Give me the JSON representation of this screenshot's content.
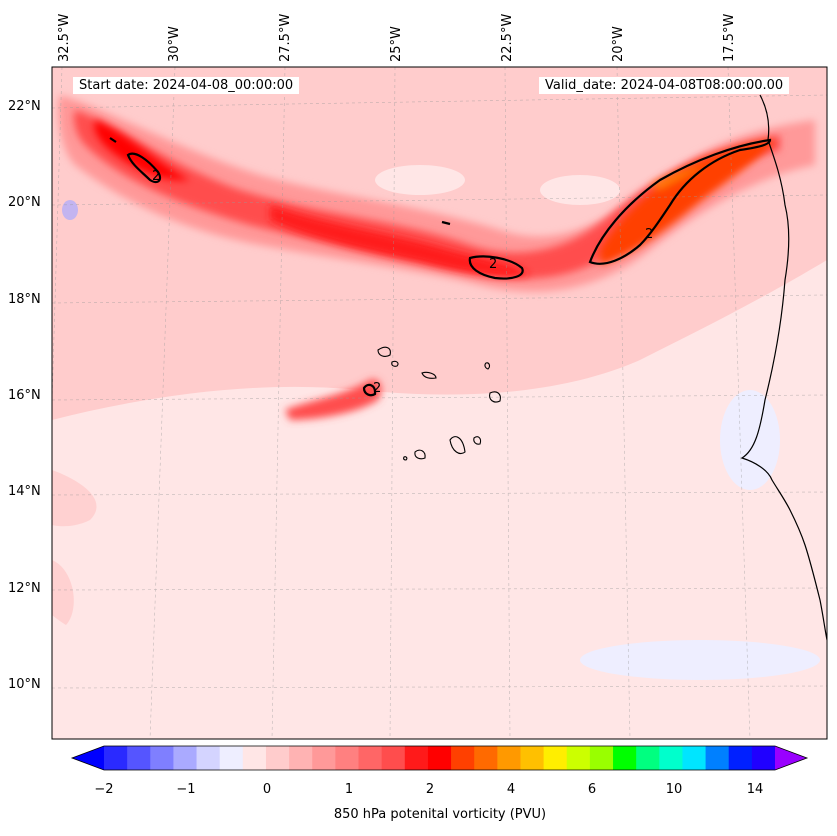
{
  "map": {
    "start_label": "Start date: 2024-04-08_00:00:00",
    "valid_label": "Valid_date: 2024-04-08T08:00:00.00",
    "lon_ticks": [
      "32.5°W",
      "30°W",
      "27.5°W",
      "25°W",
      "22.5°W",
      "20°W",
      "17.5°W"
    ],
    "lat_ticks": [
      "22°N",
      "20°N",
      "18°N",
      "16°N",
      "14°N",
      "12°N",
      "10°N"
    ],
    "contour_label": "2",
    "colorbar": {
      "label": "850 hPa potenital vorticity (PVU)",
      "tick_labels": [
        "−2",
        "−1",
        "0",
        "1",
        "2",
        "4",
        "6",
        "10",
        "14"
      ],
      "colors": [
        "#0000ff",
        "#2a2aff",
        "#5555ff",
        "#7f7fff",
        "#aaaaff",
        "#d4d4ff",
        "#eeeeff",
        "#ffe6e6",
        "#ffcccc",
        "#ffb3b3",
        "#ff9999",
        "#ff8080",
        "#ff6666",
        "#ff4d4d",
        "#ff1a1a",
        "#ff0000",
        "#ff4000",
        "#ff6a00",
        "#ff9900",
        "#ffc000",
        "#ffee00",
        "#ccff00",
        "#99ff00",
        "#00ff00",
        "#00ff80",
        "#00ffcc",
        "#00e5ff",
        "#0080ff",
        "#0020ff",
        "#2000ff",
        "#9900ff"
      ]
    }
  }
}
